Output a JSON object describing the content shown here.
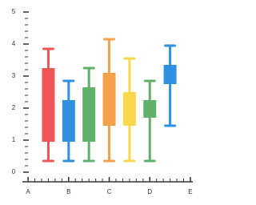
{
  "chart_data": {
    "type": "box",
    "xlim": [
      -0.14,
      4.06
    ],
    "xticks": [
      {
        "value": 0,
        "label": "A"
      },
      {
        "value": 1,
        "label": "B"
      },
      {
        "value": 2,
        "label": "C"
      },
      {
        "value": 3,
        "label": "D"
      },
      {
        "value": 4,
        "label": "E"
      }
    ],
    "ylim": [
      0,
      5
    ],
    "yticks": [
      0,
      1,
      2,
      3,
      4,
      5
    ],
    "boxes": [
      {
        "x": 0.5,
        "min": 0.35,
        "q1": 0.95,
        "q3": 3.25,
        "max": 3.85,
        "color": "#f05454"
      },
      {
        "x": 1.0,
        "min": 0.35,
        "q1": 0.95,
        "q3": 2.25,
        "max": 2.85,
        "color": "#2f8fe0"
      },
      {
        "x": 1.5,
        "min": 0.35,
        "q1": 0.95,
        "q3": 2.65,
        "max": 3.25,
        "color": "#5fb06a"
      },
      {
        "x": 2.0,
        "min": 0.35,
        "q1": 1.45,
        "q3": 3.1,
        "max": 4.15,
        "color": "#f5a04a"
      },
      {
        "x": 2.5,
        "min": 0.35,
        "q1": 1.45,
        "q3": 2.5,
        "max": 3.55,
        "color": "#fcd74e"
      },
      {
        "x": 3.0,
        "min": 0.35,
        "q1": 1.7,
        "q3": 2.25,
        "max": 2.85,
        "color": "#5fb06a"
      },
      {
        "x": 3.5,
        "min": 1.45,
        "q1": 2.75,
        "q3": 3.35,
        "max": 3.95,
        "color": "#2f8fe0"
      }
    ]
  }
}
